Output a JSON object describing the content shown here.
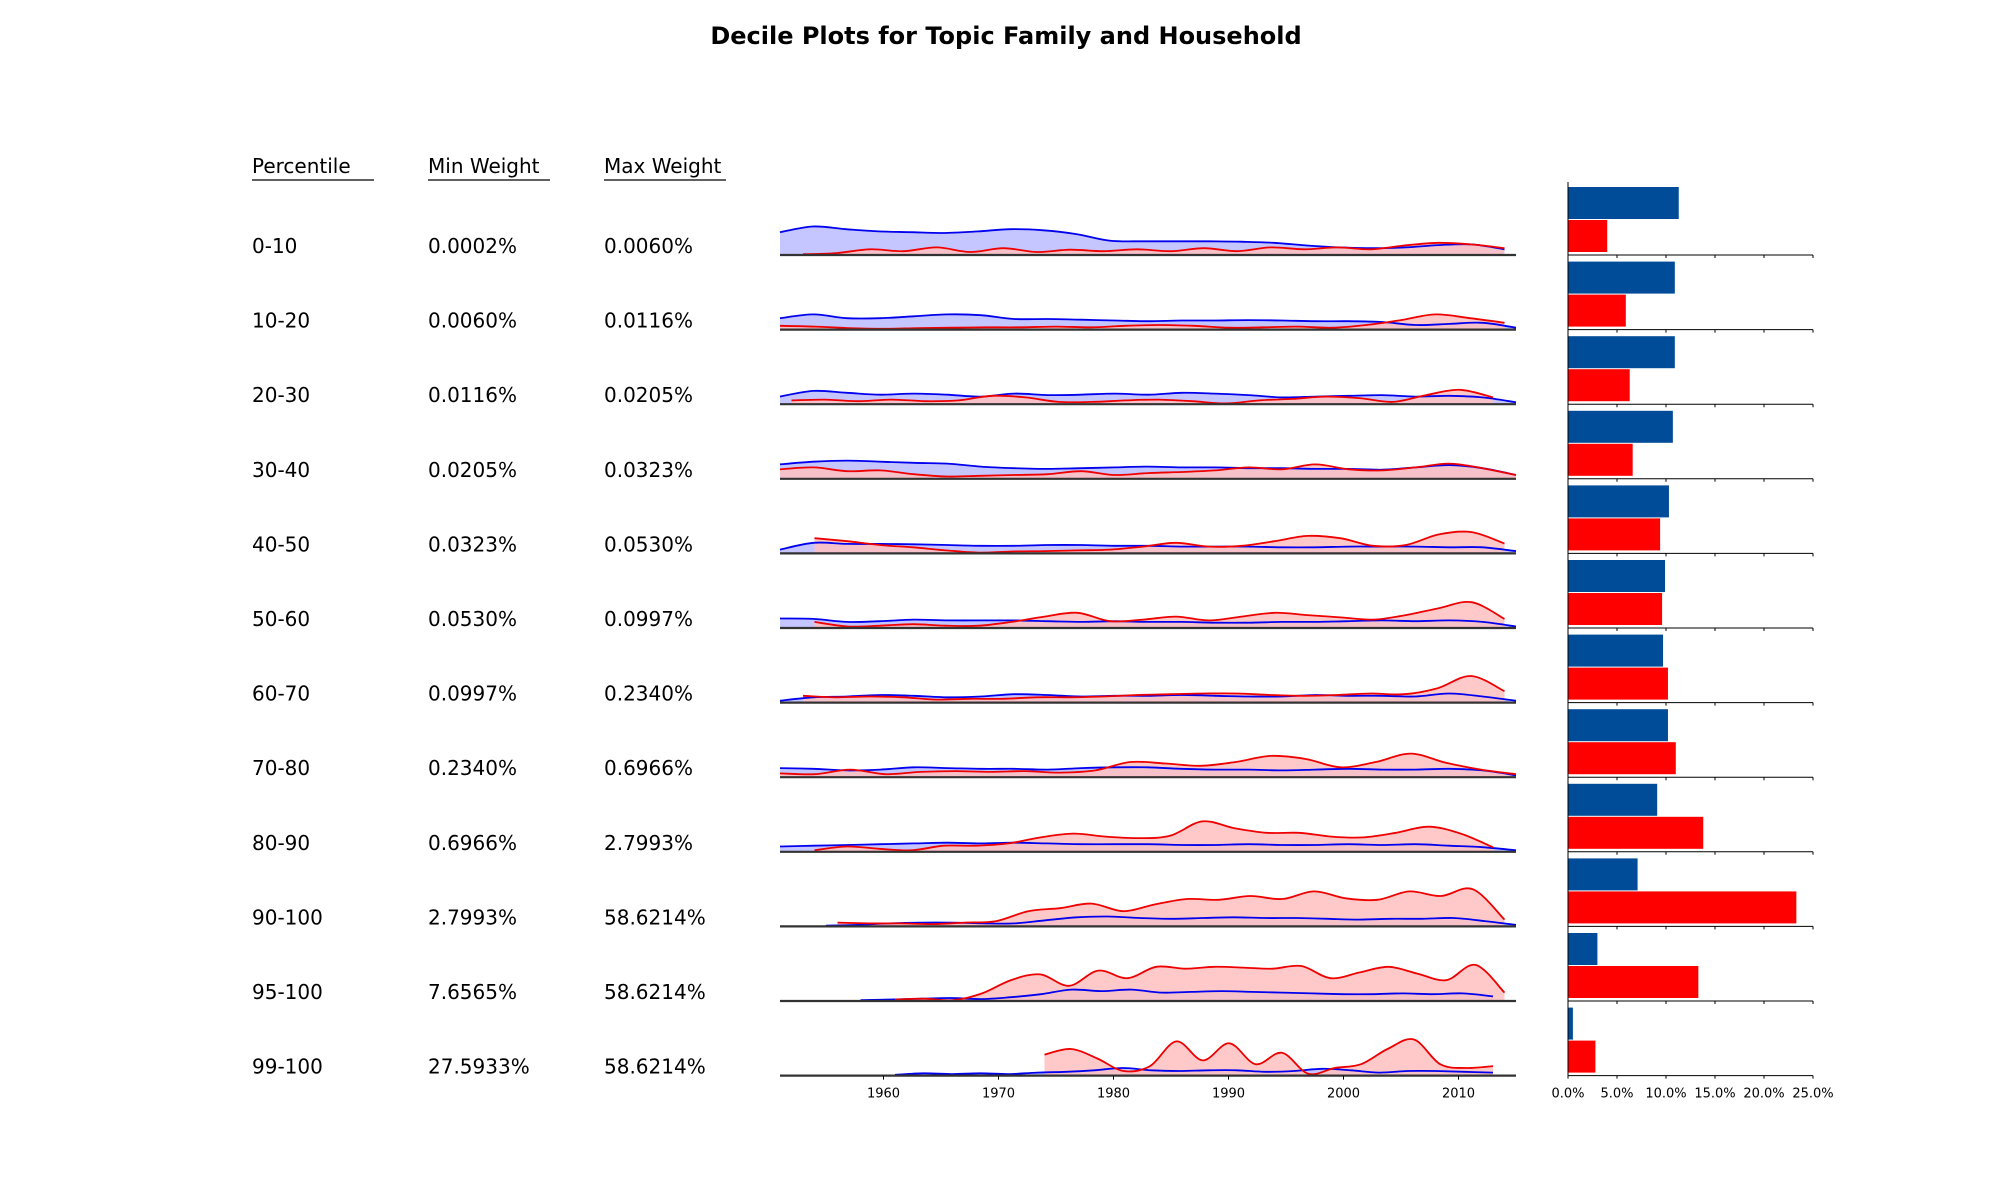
{
  "chart_data": {
    "type": "table",
    "title": "Decile Plots for Topic Family and Household",
    "headers": {
      "percentile": "Percentile",
      "min": "Min Weight",
      "max": "Max Weight"
    },
    "colors": {
      "blue": "#0000ee",
      "blue_fill": "#bbbbff",
      "red": "#ee0000",
      "red_fill": "#ffbfbf",
      "bar_blue": "#004c99",
      "bar_red": "#ff0000"
    },
    "timeline": {
      "x_ticks": [
        1960,
        1970,
        1980,
        1990,
        2000,
        2010
      ],
      "x_range": [
        1951,
        2015
      ]
    },
    "bars": {
      "x_ticks": [
        "0.0%",
        "5.0%",
        "10.0%",
        "15.0%",
        "20.0%",
        "25.0%"
      ],
      "xlim": [
        0,
        25
      ]
    },
    "rows": [
      {
        "percentile": "0-10",
        "min": "0.0002%",
        "max": "0.0060%",
        "blue_pct": 11.3,
        "red_pct": 4.0
      },
      {
        "percentile": "10-20",
        "min": "0.0060%",
        "max": "0.0116%",
        "blue_pct": 10.9,
        "red_pct": 5.9
      },
      {
        "percentile": "20-30",
        "min": "0.0116%",
        "max": "0.0205%",
        "blue_pct": 10.9,
        "red_pct": 6.3
      },
      {
        "percentile": "30-40",
        "min": "0.0205%",
        "max": "0.0323%",
        "blue_pct": 10.7,
        "red_pct": 6.6
      },
      {
        "percentile": "40-50",
        "min": "0.0323%",
        "max": "0.0530%",
        "blue_pct": 10.3,
        "red_pct": 9.4
      },
      {
        "percentile": "50-60",
        "min": "0.0530%",
        "max": "0.0997%",
        "blue_pct": 9.9,
        "red_pct": 9.6
      },
      {
        "percentile": "60-70",
        "min": "0.0997%",
        "max": "0.2340%",
        "blue_pct": 9.7,
        "red_pct": 10.2
      },
      {
        "percentile": "70-80",
        "min": "0.2340%",
        "max": "0.6966%",
        "blue_pct": 10.2,
        "red_pct": 11.0
      },
      {
        "percentile": "80-90",
        "min": "0.6966%",
        "max": "2.7993%",
        "blue_pct": 9.1,
        "red_pct": 13.8
      },
      {
        "percentile": "90-100",
        "min": "2.7993%",
        "max": "58.6214%",
        "blue_pct": 7.1,
        "red_pct": 23.3
      },
      {
        "percentile": "95-100",
        "min": "7.6565%",
        "max": "58.6214%",
        "blue_pct": 3.0,
        "red_pct": 13.3
      },
      {
        "percentile": "99-100",
        "min": "27.5933%",
        "max": "58.6214%",
        "blue_pct": 0.5,
        "red_pct": 2.8
      }
    ],
    "density": [
      {
        "blue_x": [
          1951,
          2014
        ],
        "blue": [
          0.6,
          0.75,
          0.68,
          0.62,
          0.6,
          0.58,
          0.62,
          0.68,
          0.65,
          0.55,
          0.38,
          0.36,
          0.36,
          0.36,
          0.35,
          0.32,
          0.25,
          0.2,
          0.18,
          0.2,
          0.26,
          0.28,
          0.15
        ],
        "red_x": [
          1953,
          2014
        ],
        "red": [
          0.02,
          0.05,
          0.15,
          0.1,
          0.2,
          0.08,
          0.18,
          0.08,
          0.14,
          0.1,
          0.15,
          0.1,
          0.18,
          0.1,
          0.2,
          0.15,
          0.2,
          0.15,
          0.25,
          0.32,
          0.28,
          0.18
        ]
      },
      {
        "blue_x": [
          1951,
          2015
        ],
        "blue": [
          0.3,
          0.4,
          0.3,
          0.3,
          0.35,
          0.4,
          0.38,
          0.28,
          0.28,
          0.26,
          0.24,
          0.22,
          0.24,
          0.24,
          0.25,
          0.24,
          0.22,
          0.22,
          0.2,
          0.12,
          0.15,
          0.18,
          0.05
        ],
        "red_x": [
          1951,
          2014
        ],
        "red": [
          0.1,
          0.08,
          0.04,
          0.02,
          0.04,
          0.05,
          0.06,
          0.06,
          0.08,
          0.06,
          0.1,
          0.12,
          0.1,
          0.05,
          0.06,
          0.08,
          0.05,
          0.12,
          0.25,
          0.4,
          0.3,
          0.18
        ]
      },
      {
        "blue_x": [
          1951,
          2015
        ],
        "blue": [
          0.2,
          0.35,
          0.3,
          0.25,
          0.28,
          0.25,
          0.2,
          0.28,
          0.24,
          0.25,
          0.28,
          0.25,
          0.3,
          0.28,
          0.24,
          0.18,
          0.2,
          0.22,
          0.24,
          0.2,
          0.22,
          0.18,
          0.05
        ],
        "red_x": [
          1952,
          2013
        ],
        "red": [
          0.1,
          0.12,
          0.08,
          0.12,
          0.08,
          0.1,
          0.22,
          0.18,
          0.06,
          0.06,
          0.1,
          0.12,
          0.08,
          0.02,
          0.1,
          0.14,
          0.2,
          0.16,
          0.06,
          0.24,
          0.38,
          0.18
        ]
      },
      {
        "blue_x": [
          1951,
          2015
        ],
        "blue": [
          0.38,
          0.45,
          0.48,
          0.45,
          0.42,
          0.4,
          0.32,
          0.28,
          0.26,
          0.28,
          0.3,
          0.32,
          0.3,
          0.3,
          0.28,
          0.28,
          0.26,
          0.26,
          0.24,
          0.3,
          0.36,
          0.28,
          0.1
        ],
        "red_x": [
          1951,
          2015
        ],
        "red": [
          0.25,
          0.3,
          0.2,
          0.22,
          0.12,
          0.06,
          0.08,
          0.1,
          0.12,
          0.2,
          0.1,
          0.15,
          0.18,
          0.22,
          0.3,
          0.25,
          0.38,
          0.25,
          0.22,
          0.3,
          0.4,
          0.28,
          0.1
        ]
      },
      {
        "blue_x": [
          1951,
          2015
        ],
        "blue": [
          0.1,
          0.28,
          0.25,
          0.25,
          0.24,
          0.22,
          0.2,
          0.2,
          0.22,
          0.22,
          0.2,
          0.2,
          0.18,
          0.18,
          0.18,
          0.16,
          0.16,
          0.18,
          0.18,
          0.18,
          0.16,
          0.16,
          0.06
        ],
        "red_x": [
          1954,
          2014
        ],
        "red": [
          0.4,
          0.32,
          0.22,
          0.16,
          0.08,
          0.02,
          0.05,
          0.06,
          0.08,
          0.1,
          0.18,
          0.28,
          0.18,
          0.2,
          0.32,
          0.46,
          0.4,
          0.2,
          0.22,
          0.5,
          0.56,
          0.26
        ]
      },
      {
        "blue_x": [
          1951,
          2015
        ],
        "blue": [
          0.25,
          0.24,
          0.16,
          0.18,
          0.22,
          0.2,
          0.2,
          0.2,
          0.18,
          0.16,
          0.18,
          0.16,
          0.16,
          0.14,
          0.14,
          0.16,
          0.16,
          0.18,
          0.2,
          0.18,
          0.2,
          0.16,
          0.04
        ],
        "red_x": [
          1954,
          2014
        ],
        "red": [
          0.16,
          0.04,
          0.06,
          0.1,
          0.06,
          0.06,
          0.16,
          0.3,
          0.4,
          0.18,
          0.22,
          0.3,
          0.2,
          0.3,
          0.4,
          0.34,
          0.28,
          0.22,
          0.34,
          0.52,
          0.68,
          0.24
        ]
      },
      {
        "blue_x": [
          1951,
          2015
        ],
        "blue": [
          0.05,
          0.14,
          0.16,
          0.2,
          0.18,
          0.14,
          0.16,
          0.22,
          0.2,
          0.16,
          0.18,
          0.18,
          0.2,
          0.18,
          0.16,
          0.16,
          0.2,
          0.18,
          0.18,
          0.16,
          0.24,
          0.16,
          0.05
        ],
        "red_x": [
          1953,
          2014
        ],
        "red": [
          0.18,
          0.14,
          0.16,
          0.14,
          0.08,
          0.1,
          0.1,
          0.14,
          0.14,
          0.16,
          0.2,
          0.22,
          0.24,
          0.24,
          0.2,
          0.18,
          0.2,
          0.24,
          0.22,
          0.38,
          0.7,
          0.3
        ]
      },
      {
        "blue_x": [
          1951,
          2015
        ],
        "blue": [
          0.24,
          0.22,
          0.18,
          0.2,
          0.26,
          0.24,
          0.22,
          0.22,
          0.2,
          0.24,
          0.26,
          0.26,
          0.22,
          0.2,
          0.2,
          0.18,
          0.2,
          0.22,
          0.2,
          0.2,
          0.22,
          0.18,
          0.05
        ],
        "red_x": [
          1951,
          2015
        ],
        "red": [
          0.1,
          0.08,
          0.2,
          0.08,
          0.14,
          0.16,
          0.14,
          0.16,
          0.12,
          0.18,
          0.4,
          0.36,
          0.3,
          0.4,
          0.56,
          0.48,
          0.26,
          0.4,
          0.62,
          0.38,
          0.2,
          0.08
        ]
      },
      {
        "blue_x": [
          1951,
          2015
        ],
        "blue": [
          0.14,
          0.16,
          0.18,
          0.2,
          0.22,
          0.24,
          0.22,
          0.24,
          0.22,
          0.2,
          0.2,
          0.2,
          0.18,
          0.18,
          0.2,
          0.18,
          0.18,
          0.2,
          0.18,
          0.2,
          0.16,
          0.12,
          0.04
        ],
        "red_x": [
          1954,
          2013
        ],
        "red": [
          0.04,
          0.14,
          0.08,
          0.04,
          0.16,
          0.16,
          0.22,
          0.38,
          0.48,
          0.4,
          0.36,
          0.42,
          0.8,
          0.62,
          0.5,
          0.5,
          0.4,
          0.38,
          0.5,
          0.66,
          0.48,
          0.12
        ]
      },
      {
        "blue_x": [
          1955,
          2015
        ],
        "blue": [
          0.02,
          0.04,
          0.08,
          0.1,
          0.1,
          0.08,
          0.08,
          0.16,
          0.24,
          0.26,
          0.22,
          0.2,
          0.22,
          0.24,
          0.22,
          0.22,
          0.2,
          0.18,
          0.2,
          0.2,
          0.22,
          0.14,
          0.04
        ],
        "red_x": [
          1956,
          2014
        ],
        "red": [
          0.1,
          0.08,
          0.08,
          0.06,
          0.1,
          0.14,
          0.4,
          0.48,
          0.6,
          0.4,
          0.58,
          0.72,
          0.7,
          0.8,
          0.72,
          0.92,
          0.74,
          0.7,
          0.92,
          0.8,
          0.98,
          0.18
        ]
      },
      {
        "blue_x": [
          1958,
          2013
        ],
        "blue": [
          0.02,
          0.04,
          0.06,
          0.08,
          0.05,
          0.1,
          0.18,
          0.3,
          0.26,
          0.3,
          0.22,
          0.24,
          0.26,
          0.24,
          0.22,
          0.2,
          0.18,
          0.18,
          0.2,
          0.18,
          0.2,
          0.12
        ],
        "red_x": [
          1961,
          2014
        ],
        "red": [
          0.04,
          0.06,
          0.02,
          0.2,
          0.55,
          0.7,
          0.4,
          0.8,
          0.6,
          0.9,
          0.85,
          0.9,
          0.88,
          0.85,
          0.92,
          0.6,
          0.75,
          0.9,
          0.72,
          0.55,
          0.95,
          0.22
        ]
      },
      {
        "blue_x": [
          1961,
          2013
        ],
        "blue": [
          0.02,
          0.06,
          0.04,
          0.06,
          0.04,
          0.08,
          0.1,
          0.14,
          0.2,
          0.14,
          0.12,
          0.14,
          0.14,
          0.1,
          0.12,
          0.18,
          0.14,
          0.08,
          0.12,
          0.12,
          0.1,
          0.08
        ],
        "red_x": [
          1974,
          2013
        ],
        "red": [
          0.55,
          0.7,
          0.45,
          0.12,
          0.25,
          0.9,
          0.4,
          0.85,
          0.3,
          0.6,
          0.05,
          0.2,
          0.3,
          0.7,
          0.95,
          0.3,
          0.2,
          0.25
        ]
      }
    ]
  }
}
